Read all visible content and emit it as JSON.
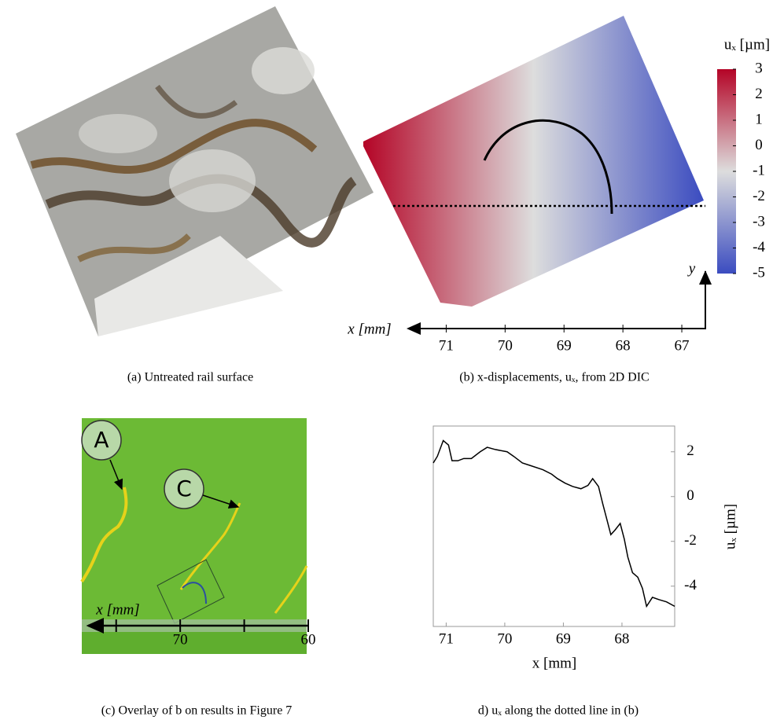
{
  "chart_data": [
    {
      "type": "image",
      "caption": "(a) Untreated rail surface"
    },
    {
      "type": "heatmap",
      "caption": "(b) x-displacements, uₓ, from 2D DIC",
      "xlabel": "x [mm]",
      "ylabel": "y",
      "xlim": [
        71.7,
        66.6
      ],
      "xticks": [
        71,
        70,
        69,
        68,
        67
      ],
      "colorbar": {
        "label": "uₓ [µm]",
        "lim": [
          -5,
          3
        ],
        "ticks": [
          3,
          2,
          1,
          0,
          -1,
          -2,
          -3,
          -4,
          -5
        ],
        "colors": [
          "#b40426",
          "#dddddd",
          "#3b4cc0"
        ]
      }
    },
    {
      "type": "overlay",
      "caption": "(c) Overlay of b on results in Figure 7",
      "labels": [
        "A",
        "C"
      ],
      "xlabel": "x [mm]",
      "xlim": [
        77.44,
        60
      ],
      "xticks": [
        70,
        60
      ],
      "minor_xticks": [
        75,
        65
      ]
    },
    {
      "type": "line",
      "caption": "d) uₓ along the dotted line in (b)",
      "xlabel": "x [mm]",
      "ylabel": "uₓ [µm]",
      "xlim": [
        71.22,
        67.1
      ],
      "ylim": [
        -5.8,
        3.15
      ],
      "xticks": [
        71,
        70,
        69,
        68
      ],
      "yticks": [
        2,
        0,
        -2,
        -4
      ],
      "color": "#000000",
      "x": [
        71.22,
        71.15,
        71.05,
        70.96,
        70.9,
        70.8,
        70.7,
        70.57,
        70.42,
        70.3,
        70.16,
        69.96,
        69.85,
        69.7,
        69.58,
        69.35,
        69.2,
        69.1,
        68.97,
        68.84,
        68.7,
        68.58,
        68.5,
        68.4,
        68.33,
        68.26,
        68.19,
        68.12,
        68.03,
        67.96,
        67.9,
        67.82,
        67.73,
        67.65,
        67.58,
        67.48,
        67.37,
        67.24,
        67.1
      ],
      "values": [
        1.5,
        1.8,
        2.5,
        2.3,
        1.6,
        1.6,
        1.7,
        1.7,
        2.0,
        2.2,
        2.1,
        2.0,
        1.8,
        1.5,
        1.4,
        1.2,
        1.0,
        0.8,
        0.6,
        0.45,
        0.35,
        0.5,
        0.8,
        0.45,
        -0.3,
        -1.0,
        -1.7,
        -1.5,
        -1.2,
        -1.9,
        -2.7,
        -3.4,
        -3.6,
        -4.1,
        -4.9,
        -4.5,
        -4.6,
        -4.7,
        -4.9
      ]
    }
  ]
}
